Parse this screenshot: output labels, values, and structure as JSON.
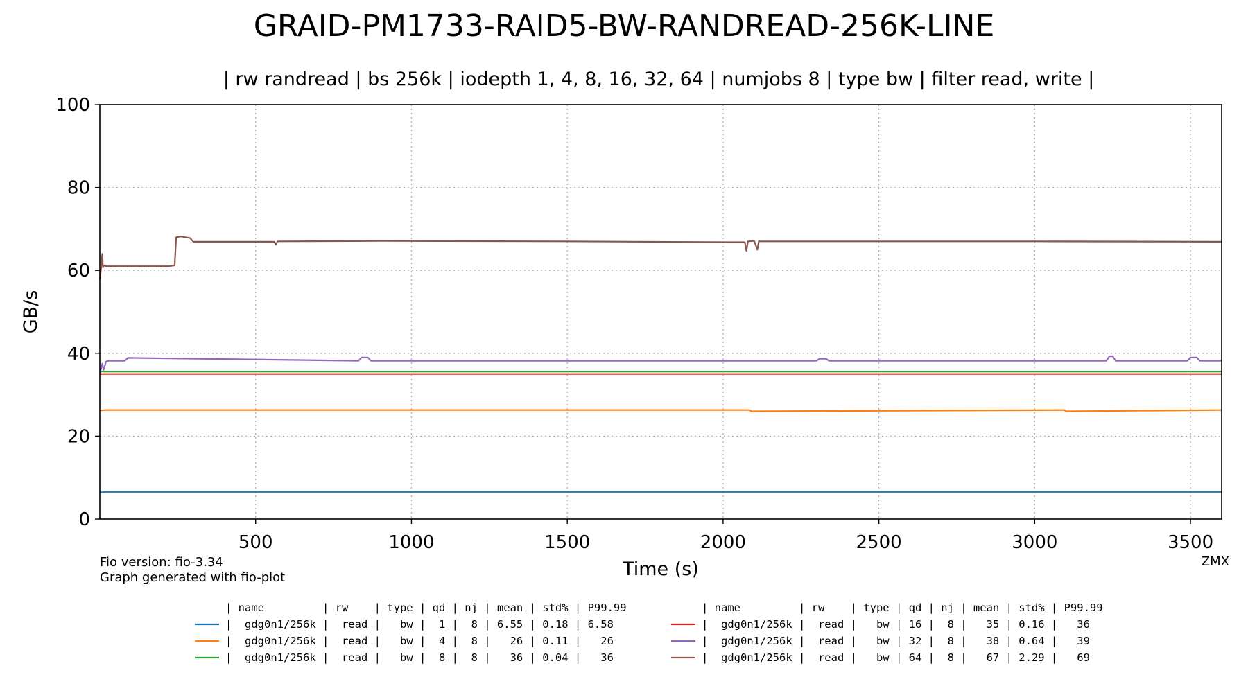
{
  "chart_data": {
    "type": "line",
    "title": "GRAID-PM1733-RAID5-BW-RANDREAD-256K-LINE",
    "subtitle": "| rw randread | bs 256k | iodepth 1, 4, 8, 16, 32, 64 | numjobs 8 | type bw | filter read, write |",
    "xlabel": "Time (s)",
    "ylabel": "GB/s",
    "xlim": [
      0,
      3600
    ],
    "ylim": [
      0,
      100
    ],
    "xticks": [
      500,
      1000,
      1500,
      2000,
      2500,
      3000,
      3500
    ],
    "yticks": [
      0,
      20,
      40,
      60,
      80,
      100
    ],
    "grid": true,
    "series": [
      {
        "name": "gdg0n1/256k",
        "color": "#1f77b4",
        "x": [
          0,
          20,
          3600
        ],
        "values": [
          6.4,
          6.55,
          6.55
        ]
      },
      {
        "name": "gdg0n1/256k",
        "color": "#ff7f0e",
        "x": [
          0,
          20,
          1800,
          2085,
          2090,
          3095,
          3100,
          3600
        ],
        "values": [
          26.2,
          26.3,
          26.3,
          26.3,
          26.0,
          26.3,
          26.0,
          26.3
        ]
      },
      {
        "name": "gdg0n1/256k",
        "color": "#2ca02c",
        "x": [
          0,
          3600
        ],
        "values": [
          35.6,
          35.6
        ]
      },
      {
        "name": "gdg0n1/256k",
        "color": "#d62728",
        "x": [
          0,
          3600
        ],
        "values": [
          35.0,
          35.0
        ]
      },
      {
        "name": "gdg0n1/256k",
        "color": "#9467bd",
        "x": [
          0,
          8,
          12,
          20,
          30,
          80,
          90,
          830,
          840,
          860,
          870,
          1500,
          2300,
          2310,
          2330,
          2340,
          3230,
          3240,
          3250,
          3260,
          3490,
          3500,
          3520,
          3530,
          3600
        ],
        "values": [
          35,
          37.5,
          36,
          38,
          38.2,
          38.2,
          38.9,
          38.2,
          39.0,
          39.0,
          38.2,
          38.2,
          38.2,
          38.7,
          38.7,
          38.2,
          38.2,
          39.3,
          39.3,
          38.2,
          38.2,
          39.0,
          39.0,
          38.2,
          38.2
        ]
      },
      {
        "name": "gdg0n1/256k",
        "color": "#8c564b",
        "x": [
          0,
          4,
          8,
          10,
          14,
          20,
          60,
          120,
          180,
          220,
          240,
          245,
          260,
          290,
          300,
          320,
          560,
          565,
          570,
          900,
          1500,
          2000,
          2070,
          2075,
          2080,
          2100,
          2110,
          2115,
          2120,
          3000,
          3600
        ],
        "values": [
          57.8,
          60.5,
          64,
          60.7,
          61.2,
          61.0,
          61.0,
          61.0,
          61.0,
          61.0,
          61.2,
          68.0,
          68.2,
          67.8,
          66.9,
          66.9,
          66.9,
          66.2,
          67.0,
          67.1,
          67.0,
          66.8,
          66.8,
          64.7,
          67.0,
          67.1,
          65.0,
          67.1,
          67.0,
          67.0,
          66.9
        ]
      }
    ]
  },
  "notes": {
    "fio_version": "Fio version: fio-3.34",
    "generator": "Graph generated with fio-plot",
    "corner": "ZMX"
  },
  "legend": {
    "header": "| name         | rw    | type | qd | nj | mean | std% | P99.99",
    "rows": [
      "|  gdg0n1/256k |  read |   bw |  1 |  8 | 6.55 | 0.18 | 6.58",
      "|  gdg0n1/256k |  read |   bw |  4 |  8 |   26 | 0.11 |   26",
      "|  gdg0n1/256k |  read |   bw |  8 |  8 |   36 | 0.04 |   36",
      "|  gdg0n1/256k |  read |   bw | 16 |  8 |   35 | 0.16 |   36",
      "|  gdg0n1/256k |  read |   bw | 32 |  8 |   38 | 0.64 |   39",
      "|  gdg0n1/256k |  read |   bw | 64 |  8 |   67 | 2.29 |   69"
    ]
  }
}
